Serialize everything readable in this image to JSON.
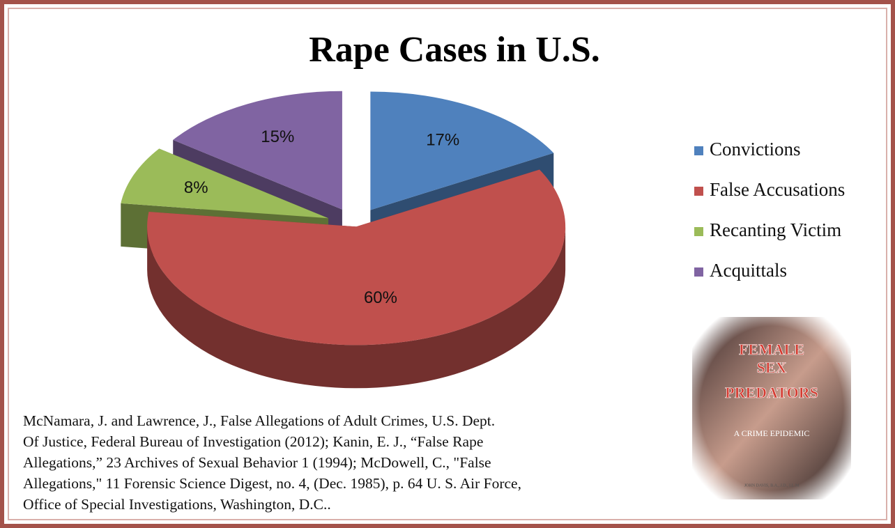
{
  "chart_data": {
    "type": "pie",
    "title": "Rape Cases in U.S.",
    "categories": [
      "Convictions",
      "False Accusations",
      "Recanting Victim",
      "Acquittals"
    ],
    "values": [
      17,
      60,
      8,
      15
    ],
    "value_labels": [
      "17%",
      "60%",
      "8%",
      "15%"
    ],
    "colors": [
      "#4f81bd",
      "#c0504d",
      "#9bbb59",
      "#8064a2"
    ],
    "legend": "right",
    "source": [
      "McNamara, J. and Lawrence, J., False Allegations of Adult Crimes, U.S. Dept.",
      "Of Justice, Federal Bureau of Investigation (2012);  Kanin, E. J., “False Rape",
      "Allegations,” 23 Archives of Sexual Behavior 1 (1994); McDowell, C., \"False",
      "Allegations,\" 11 Forensic Science Digest, no. 4, (Dec. 1985), p. 64 U. S. Air Force,",
      "Office of Special Investigations, Washington, D.C.."
    ],
    "annotations": [
      "FEMALE",
      "SEX",
      "PREDATORS",
      "A CRIME EPIDEMIC",
      "JOHN DAVIS, B.A., J.D., LL.M"
    ]
  }
}
